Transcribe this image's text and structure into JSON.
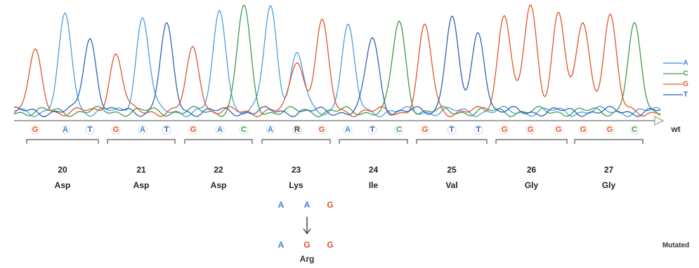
{
  "bases": [
    "G",
    "A",
    "T",
    "G",
    "A",
    "T",
    "G",
    "A",
    "C",
    "A",
    "R",
    "G",
    "A",
    "T",
    "C",
    "G",
    "T",
    "T",
    "G",
    "G",
    "G",
    "G",
    "G",
    "C"
  ],
  "base_colors": {
    "A": "#3a86d4",
    "C": "#3f9a4c",
    "G": "#e0562a",
    "T": "#2f62b4",
    "R": "#333333"
  },
  "legend": [
    "A",
    "C",
    "G",
    "T"
  ],
  "wt_label": "wt",
  "codons": [
    {
      "number": 20,
      "amino_acid": "Asp"
    },
    {
      "number": 21,
      "amino_acid": "Asp"
    },
    {
      "number": 22,
      "amino_acid": "Asp"
    },
    {
      "number": 23,
      "amino_acid": "Lys"
    },
    {
      "number": 24,
      "amino_acid": "Ile"
    },
    {
      "number": 25,
      "amino_acid": "Val"
    },
    {
      "number": 26,
      "amino_acid": "Gly"
    },
    {
      "number": 27,
      "amino_acid": "Gly"
    }
  ],
  "original_codon": [
    "A",
    "A",
    "G"
  ],
  "mutated_codon": [
    "A",
    "G",
    "G"
  ],
  "mutated_amino_acid": "Arg",
  "mutated_label": "Mutated"
}
